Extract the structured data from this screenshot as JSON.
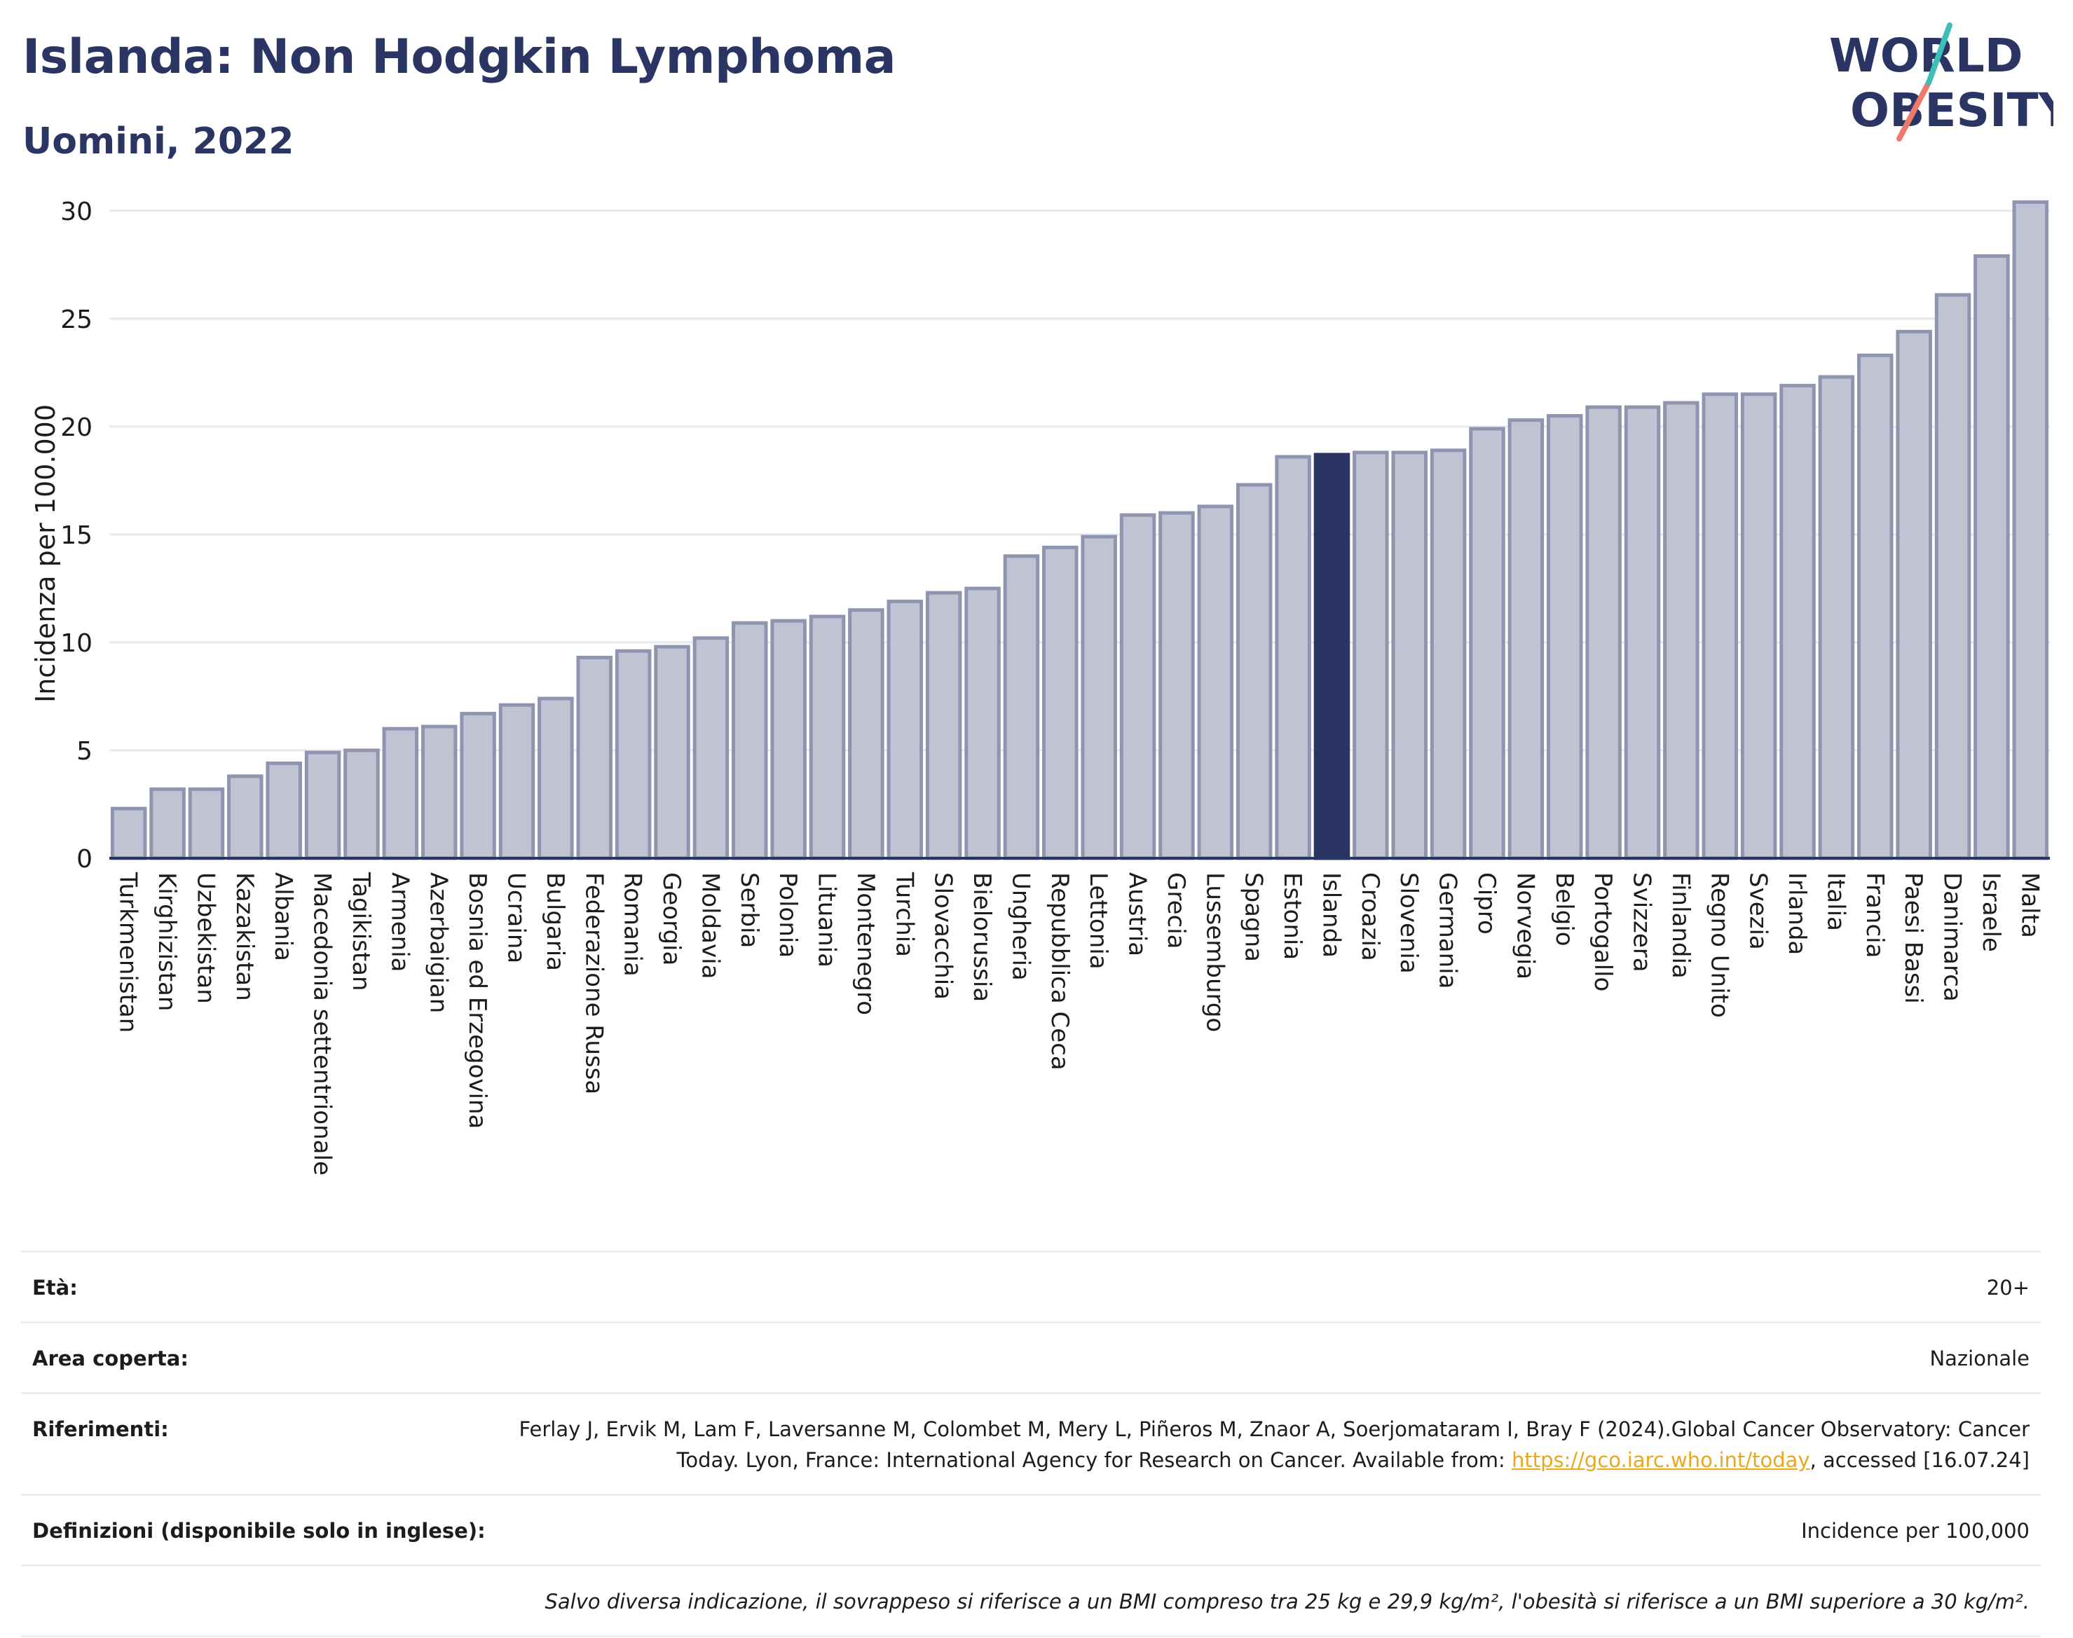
{
  "header": {
    "title": "Islanda: Non Hodgkin Lymphoma",
    "subtitle": "Uomini, 2022",
    "logo_text_line1": "WORLD",
    "logo_text_line2": "OBESITY"
  },
  "colors": {
    "title": "#2a3563",
    "bar_default_fill": "#bfc3d2",
    "bar_default_stroke": "#8f95b0",
    "bar_highlight": "#2a3563",
    "link": "#e8a820",
    "logo_teal": "#3bbfb7",
    "logo_coral": "#f07a6a"
  },
  "chart_data": {
    "type": "bar",
    "title": "Islanda: Non Hodgkin Lymphoma",
    "subtitle": "Uomini, 2022",
    "xlabel": "",
    "ylabel": "Incidenza per 100.000",
    "ylim": [
      0,
      31
    ],
    "yticks": [
      0,
      5,
      10,
      15,
      20,
      25,
      30
    ],
    "grid": true,
    "highlight": "Islanda",
    "categories": [
      "Turkmenistan",
      "Kirghizistan",
      "Uzbekistan",
      "Kazakistan",
      "Albania",
      "Macedonia settentrionale",
      "Tagikistan",
      "Armenia",
      "Azerbaigian",
      "Bosnia ed Erzegovina",
      "Ucraina",
      "Bulgaria",
      "Federazione Russa",
      "Romania",
      "Georgia",
      "Moldavia",
      "Serbia",
      "Polonia",
      "Lituania",
      "Montenegro",
      "Turchia",
      "Slovacchia",
      "Bielorussia",
      "Ungheria",
      "Repubblica Ceca",
      "Lettonia",
      "Austria",
      "Grecia",
      "Lussemburgo",
      "Spagna",
      "Estonia",
      "Islanda",
      "Croazia",
      "Slovenia",
      "Germania",
      "Cipro",
      "Norvegia",
      "Belgio",
      "Portogallo",
      "Svizzera",
      "Finlandia",
      "Regno Unito",
      "Svezia",
      "Irlanda",
      "Italia",
      "Francia",
      "Paesi Bassi",
      "Danimarca",
      "Israele",
      "Malta"
    ],
    "values": [
      2.3,
      3.2,
      3.2,
      3.8,
      4.4,
      4.9,
      5.0,
      6.0,
      6.1,
      6.7,
      7.1,
      7.4,
      9.3,
      9.6,
      9.8,
      10.2,
      10.9,
      11.0,
      11.2,
      11.5,
      11.9,
      12.3,
      12.5,
      14.0,
      14.4,
      14.9,
      15.9,
      16.0,
      16.3,
      17.3,
      18.6,
      18.7,
      18.8,
      18.8,
      18.9,
      19.9,
      20.3,
      20.5,
      20.9,
      20.9,
      21.1,
      21.5,
      21.5,
      21.9,
      22.3,
      23.3,
      24.4,
      26.1,
      27.9,
      30.4
    ]
  },
  "info": {
    "age_label": "Età:",
    "age_value": "20+",
    "area_label": "Area coperta:",
    "area_value": "Nazionale",
    "refs_label": "Riferimenti:",
    "refs_text1": "Ferlay J, Ervik M, Lam F, Laversanne M, Colombet M, Mery L, Piñeros M, Znaor A, Soerjomataram I, Bray F (2024).Global Cancer Observatory: Cancer Today. Lyon, France: International Agency for Research on Cancer. Available from: ",
    "refs_link": "https://gco.iarc.who.int/today",
    "refs_text2": ", accessed [16.07.24]",
    "defs_label": "Definizioni (disponibile solo in inglese):",
    "defs_value": "Incidence per 100,000",
    "note": "Salvo diversa indicazione, il sovrappeso si riferisce a un BMI compreso tra 25 kg e 29,9 kg/m², l'obesità si riferisce a un BMI superiore a 30 kg/m²."
  }
}
